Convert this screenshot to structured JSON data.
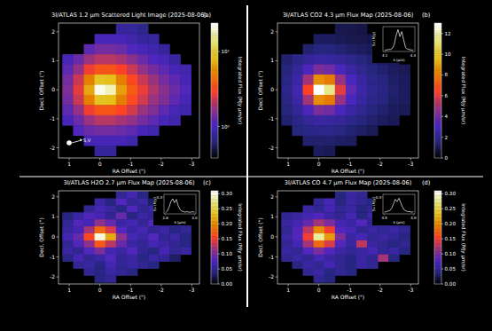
{
  "chart_data": [
    {
      "type": "heatmap",
      "title": "3I/ATLAS 1.2 μm Scattered Light Image (2025-08-06)",
      "panel_label": "(a)",
      "x_label": "RA Offset (\")",
      "y_label": "Decl. Offset (\")",
      "xlim": [
        1.35,
        -3.25
      ],
      "ylim": [
        -2.35,
        2.3
      ],
      "xticks": [
        1,
        0,
        -1,
        -2,
        -3
      ],
      "yticks": [
        -2,
        -1,
        0,
        1,
        2
      ],
      "x": [
        1.05,
        0.7,
        0.35,
        0,
        -0.35,
        -0.7,
        -1.05,
        -1.4,
        -1.75,
        -2.1,
        -2.45,
        -2.8
      ],
      "y": [
        2.1,
        1.75,
        1.4,
        1.05,
        0.7,
        0.35,
        0,
        -0.35,
        -0.7,
        -1.05,
        -1.4,
        -1.75,
        -2.1
      ],
      "cells": [
        [
          null,
          null,
          null,
          null,
          null,
          0.8,
          0.8,
          0.7,
          null,
          null,
          null,
          null
        ],
        [
          null,
          null,
          null,
          1.0,
          1.0,
          1.0,
          0.9,
          0.8,
          0.8,
          null,
          null,
          null
        ],
        [
          null,
          null,
          1.2,
          1.4,
          1.4,
          1.3,
          1.1,
          1.0,
          0.9,
          0.8,
          null,
          null
        ],
        [
          1.0,
          1.3,
          1.8,
          2.1,
          2.1,
          1.9,
          1.6,
          1.3,
          1.1,
          1.0,
          0.8,
          null
        ],
        [
          1.2,
          1.7,
          2.8,
          3.6,
          3.6,
          3.0,
          2.3,
          1.7,
          1.4,
          1.2,
          1.0,
          0.9
        ],
        [
          1.4,
          2.3,
          5.0,
          9.0,
          8.5,
          5.0,
          3.2,
          2.3,
          1.8,
          1.4,
          1.2,
          1.0
        ],
        [
          1.5,
          2.6,
          7.0,
          22,
          18,
          6.5,
          3.8,
          2.7,
          2.0,
          1.6,
          1.3,
          1.1
        ],
        [
          1.4,
          2.3,
          5.0,
          9.0,
          8.5,
          5.0,
          3.3,
          2.4,
          1.8,
          1.5,
          1.2,
          1.0
        ],
        [
          1.2,
          1.7,
          2.8,
          3.6,
          3.6,
          3.1,
          2.4,
          1.8,
          1.5,
          1.2,
          1.0,
          0.9
        ],
        [
          1.0,
          1.3,
          1.8,
          2.1,
          2.1,
          1.9,
          1.7,
          1.4,
          1.2,
          1.0,
          0.9,
          null
        ],
        [
          null,
          1.1,
          1.3,
          1.4,
          1.4,
          1.3,
          1.2,
          1.0,
          0.9,
          null,
          null,
          null
        ],
        [
          null,
          null,
          1.0,
          1.0,
          1.0,
          1.0,
          0.9,
          null,
          null,
          null,
          null,
          null
        ],
        [
          null,
          null,
          null,
          0.8,
          0.8,
          null,
          null,
          null,
          null,
          null,
          null,
          null
        ]
      ],
      "log": true,
      "color_range": [
        0.38,
        24
      ],
      "color_ticks": [
        {
          "value": 1,
          "label": "10⁰"
        },
        {
          "value": 10,
          "label": "10¹"
        }
      ],
      "color_label": "Integrated Flux (MJy μm/sr)",
      "annotation": "S,V"
    },
    {
      "type": "heatmap",
      "title": "3I/ATLAS CO2 4.3 μm Flux Map (2025-08-06)",
      "panel_label": "(b)",
      "x_label": "RA Offset (\")",
      "y_label": "Decl. Offset (\")",
      "xlim": [
        1.35,
        -3.25
      ],
      "ylim": [
        -2.35,
        2.3
      ],
      "xticks": [
        1,
        0,
        -1,
        -2,
        -3
      ],
      "yticks": [
        -2,
        -1,
        0,
        1,
        2
      ],
      "x": [
        1.05,
        0.7,
        0.35,
        0,
        -0.35,
        -0.7,
        -1.05,
        -1.4,
        -1.75,
        -2.1,
        -2.45,
        -2.8
      ],
      "y": [
        2.1,
        1.75,
        1.4,
        1.05,
        0.7,
        0.35,
        0,
        -0.35,
        -0.7,
        -1.05,
        -1.4,
        -1.75,
        -2.1
      ],
      "cells": [
        [
          null,
          null,
          null,
          null,
          null,
          1.0,
          1.0,
          0.9,
          null,
          null,
          null,
          null
        ],
        [
          null,
          null,
          null,
          1.2,
          1.2,
          1.1,
          1.0,
          1.0,
          0.9,
          null,
          null,
          null
        ],
        [
          null,
          null,
          1.4,
          1.6,
          1.6,
          1.5,
          1.3,
          1.2,
          1.1,
          1.0,
          null,
          null
        ],
        [
          1.4,
          1.8,
          2.2,
          2.5,
          2.4,
          2.2,
          1.9,
          1.6,
          1.4,
          1.2,
          1.1,
          null
        ],
        [
          1.6,
          2.2,
          3.2,
          4.2,
          4.0,
          3.2,
          2.5,
          2.0,
          1.6,
          1.4,
          1.2,
          1.1
        ],
        [
          1.8,
          2.6,
          5.0,
          8.5,
          8.0,
          4.8,
          3.2,
          2.4,
          1.9,
          1.6,
          1.3,
          1.2
        ],
        [
          1.9,
          2.8,
          6.5,
          13,
          11.5,
          6.0,
          3.6,
          2.6,
          2.0,
          1.7,
          1.4,
          1.2
        ],
        [
          1.8,
          2.6,
          5.0,
          8.5,
          8.0,
          4.8,
          3.2,
          2.4,
          1.9,
          1.6,
          1.3,
          1.2
        ],
        [
          1.6,
          2.2,
          3.2,
          4.2,
          4.0,
          3.2,
          2.5,
          2.0,
          1.6,
          1.4,
          1.2,
          1.1
        ],
        [
          1.4,
          1.8,
          2.2,
          2.5,
          2.4,
          2.2,
          1.9,
          1.6,
          1.4,
          1.2,
          1.1,
          null
        ],
        [
          null,
          1.6,
          1.8,
          1.9,
          1.9,
          1.7,
          1.5,
          1.3,
          1.1,
          null,
          null,
          null
        ],
        [
          null,
          null,
          1.4,
          1.4,
          1.4,
          1.3,
          1.2,
          null,
          null,
          null,
          null,
          null
        ],
        [
          null,
          null,
          null,
          1.2,
          1.1,
          null,
          null,
          null,
          null,
          null,
          null,
          null
        ]
      ],
      "color_range": [
        0,
        13
      ],
      "color_ticks": [
        0,
        2,
        4,
        6,
        8,
        10,
        12
      ],
      "color_label": "Integrated Flux (MJy μm/sr)",
      "inset": {
        "type": "line",
        "x_label": "λ (μm)",
        "y_label": "Sν (MJy)",
        "x": [
          4.1,
          4.12,
          4.14,
          4.16,
          4.18,
          4.2,
          4.22,
          4.24,
          4.26,
          4.28,
          4.3,
          4.32,
          4.34,
          4.36,
          4.38,
          4.4
        ],
        "values": [
          0.15,
          0.15,
          0.2,
          0.2,
          0.3,
          0.7,
          1.6,
          2.2,
          1.5,
          2.0,
          1.2,
          0.4,
          0.25,
          0.2,
          0.15,
          0.15
        ],
        "xlim": [
          4.08,
          4.42
        ],
        "ylim": [
          0,
          2.5
        ],
        "xticks": [
          4.1,
          4.4
        ],
        "color": "#ffffff"
      }
    },
    {
      "type": "heatmap",
      "title": "3I/ATLAS H2O 2.7 μm Flux Map (2025-08-06)",
      "panel_label": "(c)",
      "x_label": "RA Offset (\")",
      "y_label": "Decl. Offset (\")",
      "xlim": [
        1.35,
        -3.25
      ],
      "ylim": [
        -2.35,
        2.3
      ],
      "xticks": [
        1,
        0,
        -1,
        -2,
        -3
      ],
      "yticks": [
        -2,
        -1,
        0,
        1,
        2
      ],
      "x": [
        1.05,
        0.7,
        0.35,
        0,
        -0.35,
        -0.7,
        -1.05,
        -1.4,
        -1.75,
        -2.1,
        -2.45,
        -2.8
      ],
      "y": [
        2.1,
        1.75,
        1.4,
        1.05,
        0.7,
        0.35,
        0,
        -0.35,
        -0.7,
        -1.05,
        -1.4,
        -1.75,
        -2.1
      ],
      "cells": [
        [
          null,
          null,
          null,
          null,
          null,
          0.05,
          0.07,
          0.04,
          null,
          null,
          null,
          null
        ],
        [
          null,
          null,
          null,
          0.06,
          0.04,
          0.08,
          0.05,
          0.06,
          0.03,
          null,
          null,
          null
        ],
        [
          null,
          null,
          0.05,
          0.07,
          0.06,
          0.04,
          0.08,
          0.05,
          0.06,
          0.04,
          null,
          null
        ],
        [
          0.04,
          0.06,
          0.08,
          0.07,
          0.05,
          0.09,
          0.04,
          0.06,
          0.05,
          0.07,
          0.04,
          null
        ],
        [
          0.05,
          0.08,
          0.07,
          0.11,
          0.09,
          0.06,
          0.07,
          0.05,
          0.08,
          0.04,
          0.06,
          0.05
        ],
        [
          0.06,
          0.07,
          0.12,
          0.18,
          0.14,
          0.08,
          0.06,
          0.07,
          0.05,
          0.06,
          0.04,
          0.05
        ],
        [
          0.07,
          0.09,
          0.16,
          0.3,
          0.22,
          0.11,
          0.07,
          0.06,
          0.08,
          0.05,
          0.06,
          0.04
        ],
        [
          0.05,
          0.08,
          0.11,
          0.17,
          0.13,
          0.09,
          0.06,
          0.05,
          0.07,
          0.06,
          0.05,
          0.04
        ],
        [
          0.06,
          0.05,
          0.08,
          0.1,
          0.07,
          0.06,
          0.08,
          0.05,
          0.04,
          0.07,
          0.05,
          0.06
        ],
        [
          0.04,
          0.07,
          0.05,
          0.06,
          0.08,
          0.05,
          0.06,
          0.04,
          0.06,
          0.05,
          0.03,
          null
        ],
        [
          null,
          0.05,
          0.06,
          0.04,
          0.07,
          0.05,
          0.06,
          0.05,
          0.04,
          null,
          null,
          null
        ],
        [
          null,
          null,
          0.05,
          0.04,
          0.06,
          0.05,
          0.04,
          null,
          null,
          null,
          null,
          null
        ],
        [
          null,
          null,
          null,
          0.04,
          0.05,
          null,
          null,
          null,
          null,
          null,
          null,
          null
        ]
      ],
      "color_range": [
        0,
        0.31
      ],
      "color_ticks": [
        {
          "value": 0,
          "label": "0.00"
        },
        {
          "value": 0.05,
          "label": "0.05"
        },
        {
          "value": 0.1,
          "label": "0.10"
        },
        {
          "value": 0.15,
          "label": "0.15"
        },
        {
          "value": 0.2,
          "label": "0.20"
        },
        {
          "value": 0.25,
          "label": "0.25"
        },
        {
          "value": 0.3,
          "label": "0.30"
        }
      ],
      "color_label": "Integrated Flux (MJy μm/sr)",
      "inset": {
        "type": "line",
        "x_label": "λ (μm)",
        "y_label": "Sν (MJy)",
        "x": [
          2.6,
          2.625,
          2.65,
          2.675,
          2.7,
          2.725,
          2.75,
          2.775,
          2.8,
          2.825,
          2.85,
          2.875,
          2.9,
          2.925,
          2.95,
          2.975,
          3.0
        ],
        "values": [
          0.02,
          0.05,
          0.12,
          0.22,
          0.27,
          0.2,
          0.26,
          0.15,
          0.08,
          0.05,
          0.04,
          0.03,
          0.04,
          0.03,
          0.03,
          0.04,
          0.03
        ],
        "xlim": [
          2.58,
          3.02
        ],
        "ylim": [
          0,
          0.35
        ],
        "xticks": [
          2.6,
          {
            "value": 3,
            "label": "3.0"
          }
        ],
        "yticks": [
          0.3
        ],
        "color": "#ffffff"
      }
    },
    {
      "type": "heatmap",
      "title": "3I/ATLAS CO 4.7 μm Flux Map (2025-08-06)",
      "panel_label": "(d)",
      "x_label": "RA Offset (\")",
      "y_label": "Decl. Offset (\")",
      "xlim": [
        1.35,
        -3.25
      ],
      "ylim": [
        -2.35,
        2.3
      ],
      "xticks": [
        1,
        0,
        -1,
        -2,
        -3
      ],
      "yticks": [
        -2,
        -1,
        0,
        1,
        2
      ],
      "x": [
        1.05,
        0.7,
        0.35,
        0,
        -0.35,
        -0.7,
        -1.05,
        -1.4,
        -1.75,
        -2.1,
        -2.45,
        -2.8
      ],
      "y": [
        2.1,
        1.75,
        1.4,
        1.05,
        0.7,
        0.35,
        0,
        -0.35,
        -0.7,
        -1.05,
        -1.4,
        -1.75,
        -2.1
      ],
      "cells": [
        [
          null,
          null,
          null,
          null,
          null,
          0.04,
          0.06,
          0.05,
          null,
          null,
          null,
          null
        ],
        [
          null,
          null,
          null,
          0.05,
          0.07,
          0.04,
          0.06,
          0.05,
          0.04,
          null,
          null,
          null
        ],
        [
          null,
          null,
          0.06,
          0.05,
          0.07,
          0.05,
          0.06,
          0.04,
          0.05,
          0.06,
          null,
          null
        ],
        [
          0.05,
          0.06,
          0.07,
          0.08,
          0.06,
          0.05,
          0.07,
          0.04,
          0.06,
          0.05,
          0.04,
          null
        ],
        [
          0.06,
          0.07,
          0.09,
          0.12,
          0.1,
          0.07,
          0.06,
          0.08,
          0.05,
          0.06,
          0.05,
          0.04
        ],
        [
          0.05,
          0.08,
          0.13,
          0.2,
          0.15,
          0.08,
          0.07,
          0.05,
          0.06,
          0.05,
          0.06,
          0.05
        ],
        [
          0.06,
          0.08,
          0.15,
          0.28,
          0.21,
          0.1,
          0.06,
          0.07,
          0.05,
          0.06,
          0.05,
          0.04
        ],
        [
          0.05,
          0.07,
          0.12,
          0.18,
          0.14,
          0.08,
          0.06,
          0.13,
          0.06,
          0.05,
          0.04,
          0.05
        ],
        [
          0.06,
          0.05,
          0.08,
          0.1,
          0.08,
          0.06,
          0.05,
          0.06,
          0.07,
          0.05,
          0.06,
          0.04
        ],
        [
          0.05,
          0.06,
          0.05,
          0.07,
          0.06,
          0.05,
          0.04,
          0.06,
          0.05,
          0.12,
          0.04,
          null
        ],
        [
          null,
          0.04,
          0.06,
          0.05,
          0.07,
          0.05,
          0.04,
          0.06,
          0.05,
          null,
          null,
          null
        ],
        [
          null,
          null,
          0.05,
          0.06,
          0.04,
          0.05,
          0.04,
          null,
          null,
          null,
          null,
          null
        ],
        [
          null,
          null,
          null,
          0.05,
          0.04,
          null,
          null,
          null,
          null,
          null,
          null,
          null
        ]
      ],
      "color_range": [
        0,
        0.31
      ],
      "color_ticks": [
        {
          "value": 0,
          "label": "0.00"
        },
        {
          "value": 0.05,
          "label": "0.05"
        },
        {
          "value": 0.1,
          "label": "0.10"
        },
        {
          "value": 0.15,
          "label": "0.15"
        },
        {
          "value": 0.2,
          "label": "0.20"
        },
        {
          "value": 0.25,
          "label": "0.25"
        },
        {
          "value": 0.3,
          "label": "0.30"
        }
      ],
      "color_label": "Integrated Flux (MJy μm/sr)",
      "inset": {
        "type": "line",
        "x_label": "λ (μm)",
        "y_label": "Sν (MJy)",
        "x": [
          4.5,
          4.525,
          4.55,
          4.575,
          4.6,
          4.625,
          4.65,
          4.675,
          4.7,
          4.725,
          4.75,
          4.775,
          4.8,
          4.825,
          4.85,
          4.875,
          4.9
        ],
        "values": [
          0.03,
          0.04,
          0.05,
          0.06,
          0.1,
          0.18,
          0.26,
          0.22,
          0.28,
          0.2,
          0.12,
          0.07,
          0.05,
          0.04,
          0.04,
          0.03,
          0.04
        ],
        "xlim": [
          4.48,
          4.92
        ],
        "ylim": [
          0,
          0.35
        ],
        "xticks": [
          4.5,
          4.9
        ],
        "yticks": [
          0.3
        ],
        "color": "#ffffff"
      }
    }
  ]
}
